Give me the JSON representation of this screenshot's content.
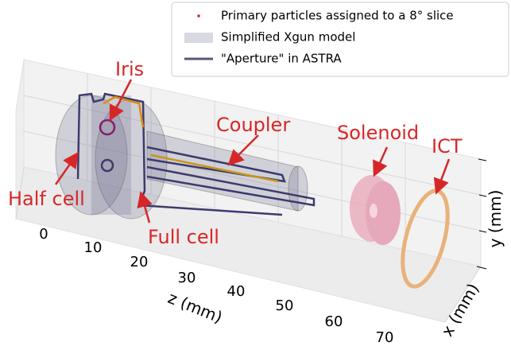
{
  "legend": [
    "Primary particles assigned to a 8° slice",
    "Simplified Xgun model",
    "\"Aperture\" in ASTRA"
  ],
  "annotations": {
    "iris": "Iris",
    "coupler": "Coupler",
    "solenoid": "Solenoid",
    "ict": "ICT",
    "half_cell": "Half cell",
    "full_cell": "Full cell"
  },
  "axes": {
    "z_label": "z (mm)",
    "z_ticks": [
      "0",
      "10",
      "20",
      "30",
      "40",
      "50",
      "60",
      "70"
    ],
    "x_label": "x (mm)",
    "y_label": "y (mm)"
  }
}
